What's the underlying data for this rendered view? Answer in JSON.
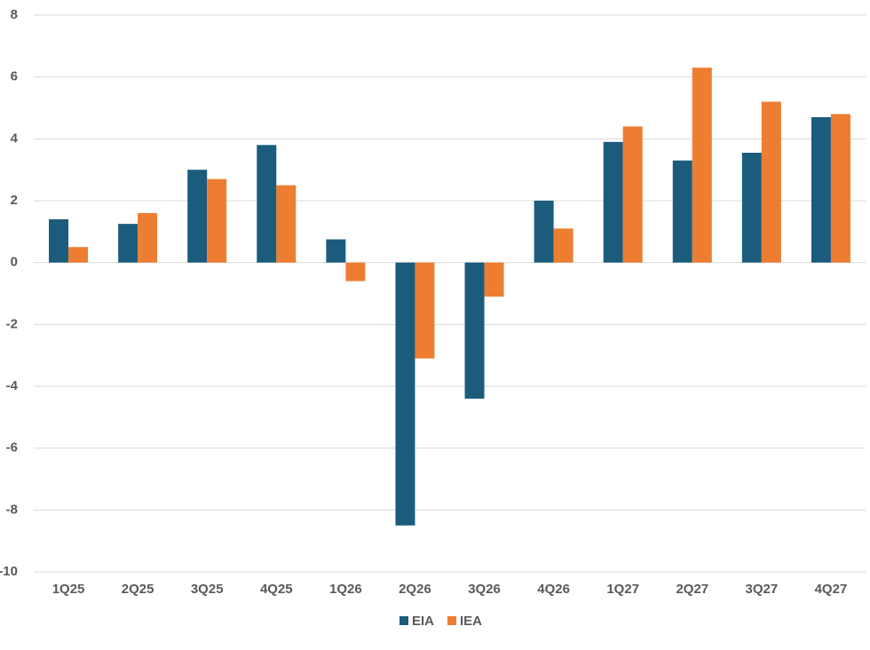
{
  "chart_data": {
    "type": "bar",
    "categories": [
      "1Q25",
      "2Q25",
      "3Q25",
      "4Q25",
      "1Q26",
      "2Q26",
      "3Q26",
      "4Q26",
      "1Q27",
      "2Q27",
      "3Q27",
      "4Q27"
    ],
    "series": [
      {
        "name": "EIA",
        "color": "#1b5c7d",
        "values": [
          1.4,
          1.25,
          3.0,
          3.8,
          0.75,
          -8.5,
          -4.4,
          2.0,
          3.9,
          3.3,
          3.55,
          4.7
        ]
      },
      {
        "name": "IEA",
        "color": "#ed7d31",
        "values": [
          0.5,
          1.6,
          2.7,
          2.5,
          -0.6,
          -3.1,
          -1.1,
          1.1,
          4.4,
          6.3,
          5.2,
          4.8
        ]
      }
    ],
    "ylim": [
      -10,
      8
    ],
    "yticks": [
      -10,
      -8,
      -6,
      -4,
      -2,
      0,
      2,
      4,
      6,
      8
    ],
    "grid": true,
    "legend": "bottom"
  }
}
